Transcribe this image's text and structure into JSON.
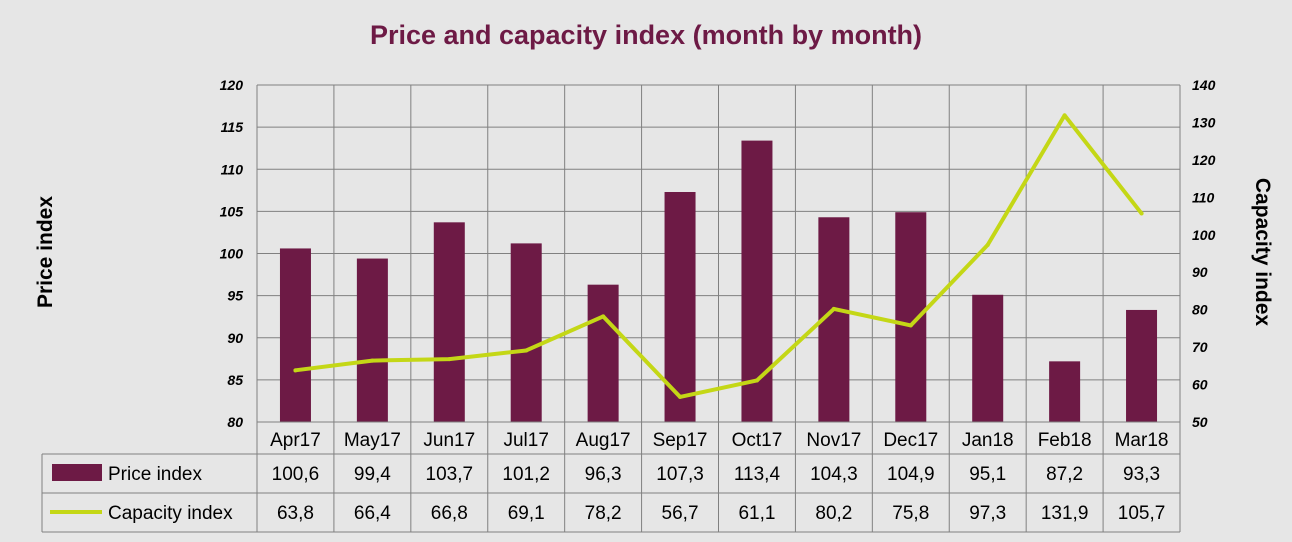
{
  "colors": {
    "price": "#6d1a45",
    "capacity": "#c4d716",
    "background": "#e6e6e6",
    "grid": "#808080",
    "title": "#6d1a45"
  },
  "chart_data": {
    "type": "bar",
    "title": "Price and capacity index (month by month)",
    "ylabel": "Price index",
    "y2label": "Capacity index",
    "categories": [
      "Apr17",
      "May17",
      "Jun17",
      "Jul17",
      "Aug17",
      "Sep17",
      "Oct17",
      "Nov17",
      "Dec17",
      "Jan18",
      "Feb18",
      "Mar18"
    ],
    "ylim": [
      80,
      120
    ],
    "y_ticks": [
      80,
      85,
      90,
      95,
      100,
      105,
      110,
      115,
      120
    ],
    "y2lim": [
      50,
      140
    ],
    "y2_ticks": [
      50,
      60,
      70,
      80,
      90,
      100,
      110,
      120,
      130,
      140
    ],
    "grid": true,
    "legend": "data-table",
    "series": [
      {
        "name": "Price index",
        "type": "bar",
        "axis": "left",
        "values": [
          100.6,
          99.4,
          103.7,
          101.2,
          96.3,
          107.3,
          113.4,
          104.3,
          104.9,
          95.1,
          87.2,
          93.3
        ],
        "labels": [
          "100,6",
          "99,4",
          "103,7",
          "101,2",
          "96,3",
          "107,3",
          "113,4",
          "104,3",
          "104,9",
          "95,1",
          "87,2",
          "93,3"
        ]
      },
      {
        "name": "Capacity index",
        "type": "line",
        "axis": "right",
        "values": [
          63.8,
          66.4,
          66.8,
          69.1,
          78.2,
          56.7,
          61.1,
          80.2,
          75.8,
          97.3,
          131.9,
          105.7
        ],
        "labels": [
          "63,8",
          "66,4",
          "66,8",
          "69,1",
          "78,2",
          "56,7",
          "61,1",
          "80,2",
          "75,8",
          "97,3",
          "131,9",
          "105,7"
        ]
      }
    ]
  }
}
